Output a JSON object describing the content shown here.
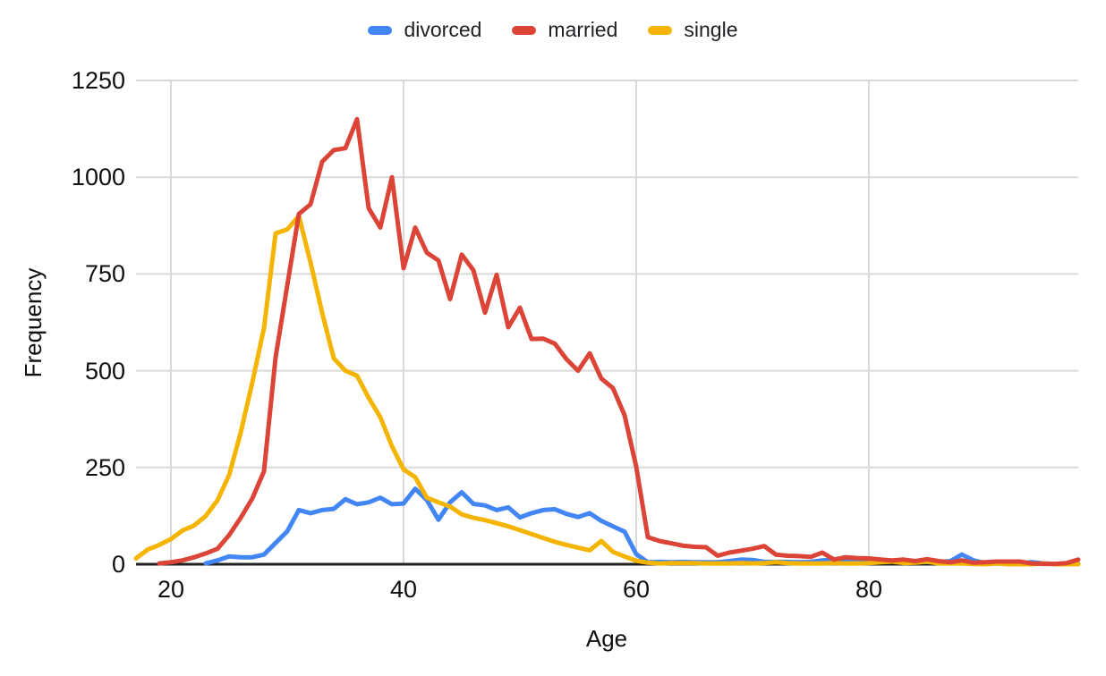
{
  "legend": {
    "items": [
      {
        "label": "divorced",
        "color": "#4285F4"
      },
      {
        "label": "married",
        "color": "#DB4437"
      },
      {
        "label": "single",
        "color": "#F4B400"
      }
    ]
  },
  "axes": {
    "x_title": "Age",
    "y_title": "Frequency"
  },
  "colors": {
    "gridline": "#d9d9d9",
    "baseline": "#212121",
    "tick_text": "#0f0f0f",
    "background": "#ffffff"
  },
  "chart_data": {
    "type": "line",
    "xlabel": "Age",
    "ylabel": "Frequency",
    "xlim": [
      17,
      98
    ],
    "ylim": [
      0,
      1250
    ],
    "x_ticks": [
      20,
      40,
      60,
      80
    ],
    "y_ticks": [
      0,
      250,
      500,
      750,
      1000,
      1250
    ],
    "grid": true,
    "legend_position": "top",
    "x": [
      17,
      18,
      19,
      20,
      21,
      22,
      23,
      24,
      25,
      26,
      27,
      28,
      29,
      30,
      31,
      32,
      33,
      34,
      35,
      36,
      37,
      38,
      39,
      40,
      41,
      42,
      43,
      44,
      45,
      46,
      47,
      48,
      49,
      50,
      51,
      52,
      53,
      54,
      55,
      56,
      57,
      58,
      59,
      60,
      61,
      62,
      63,
      64,
      65,
      66,
      67,
      68,
      69,
      70,
      71,
      72,
      73,
      74,
      75,
      76,
      77,
      78,
      79,
      80,
      81,
      82,
      83,
      84,
      85,
      86,
      87,
      88,
      89,
      90,
      91,
      92,
      93,
      94,
      95,
      96,
      97,
      98
    ],
    "series": [
      {
        "name": "divorced",
        "color": "#4285F4",
        "values": [
          null,
          null,
          null,
          null,
          null,
          null,
          2,
          10,
          20,
          18,
          18,
          25,
          55,
          85,
          140,
          132,
          140,
          143,
          168,
          155,
          160,
          172,
          155,
          157,
          195,
          166,
          115,
          160,
          186,
          156,
          152,
          140,
          147,
          121,
          132,
          140,
          142,
          130,
          122,
          132,
          112,
          98,
          84,
          26,
          5,
          6,
          5,
          6,
          5,
          5,
          5,
          8,
          12,
          11,
          6,
          6,
          6,
          5,
          6,
          10,
          12,
          10,
          8,
          8,
          9,
          8,
          6,
          5,
          6,
          5,
          8,
          25,
          10,
          2,
          2,
          3,
          2,
          5,
          2,
          1,
          1,
          1
        ]
      },
      {
        "name": "married",
        "color": "#DB4437",
        "values": [
          null,
          null,
          2,
          5,
          10,
          18,
          28,
          40,
          75,
          120,
          170,
          240,
          535,
          720,
          905,
          930,
          1040,
          1070,
          1075,
          1150,
          920,
          870,
          1000,
          765,
          870,
          805,
          785,
          685,
          800,
          760,
          650,
          748,
          612,
          663,
          582,
          583,
          570,
          530,
          500,
          545,
          480,
          455,
          385,
          252,
          70,
          60,
          54,
          48,
          45,
          44,
          22,
          30,
          35,
          40,
          47,
          25,
          22,
          21,
          19,
          30,
          12,
          18,
          16,
          15,
          12,
          10,
          12,
          8,
          13,
          8,
          5,
          10,
          4,
          5,
          7,
          7,
          7,
          2,
          1,
          1,
          3,
          12
        ]
      },
      {
        "name": "single",
        "color": "#F4B400",
        "values": [
          15,
          38,
          50,
          65,
          87,
          100,
          125,
          165,
          230,
          340,
          470,
          610,
          855,
          865,
          900,
          780,
          650,
          532,
          500,
          487,
          430,
          380,
          305,
          245,
          225,
          172,
          160,
          149,
          129,
          120,
          114,
          106,
          98,
          88,
          78,
          68,
          58,
          50,
          43,
          36,
          60,
          32,
          20,
          9,
          4,
          2,
          3,
          3,
          3,
          2,
          2,
          2,
          3,
          2,
          3,
          5,
          3,
          2,
          2,
          2,
          3,
          2,
          2,
          3,
          5,
          7,
          3,
          4,
          7,
          2,
          2,
          2,
          1,
          0,
          2,
          0,
          0,
          0,
          2,
          0,
          0,
          0
        ]
      }
    ]
  }
}
